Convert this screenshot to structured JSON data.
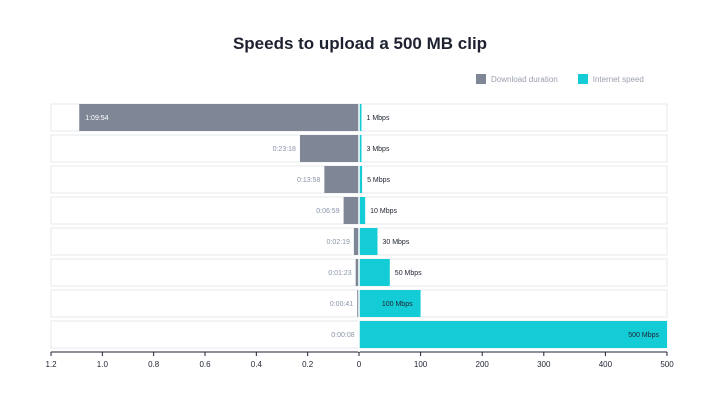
{
  "chart_data": {
    "type": "bar",
    "title": "Speeds to upload a 500 MB clip",
    "categories": [
      "1 Mbps",
      "3 Mbps",
      "5 Mbps",
      "10 Mbps",
      "30 Mbps",
      "50 Mbps",
      "100 Mbps",
      "500 Mbps"
    ],
    "series": [
      {
        "name": "Download duration",
        "color": "#7f8797",
        "values": [
          1.09,
          0.23,
          0.135,
          0.06,
          0.02,
          0.013,
          0.007,
          0.0015
        ],
        "labels": [
          "1:09:54",
          "0:23:18",
          "0:13:58",
          "0:06:59",
          "0:02:19",
          "0:01:23",
          "0:00:41",
          "0:00:08"
        ]
      },
      {
        "name": "Internet speed",
        "color": "#14ccd6",
        "values": [
          1,
          3,
          5,
          10,
          30,
          50,
          100,
          500
        ]
      }
    ],
    "left_axis": {
      "ticks": [
        "1.2",
        "1.0",
        "0.8",
        "0.6",
        "0.4",
        "0.2",
        "0"
      ],
      "range": [
        1.2,
        0
      ]
    },
    "right_axis": {
      "ticks": [
        "100",
        "200",
        "300",
        "400",
        "500"
      ],
      "range": [
        0,
        500
      ]
    },
    "legend": "top-right",
    "grid": false
  }
}
